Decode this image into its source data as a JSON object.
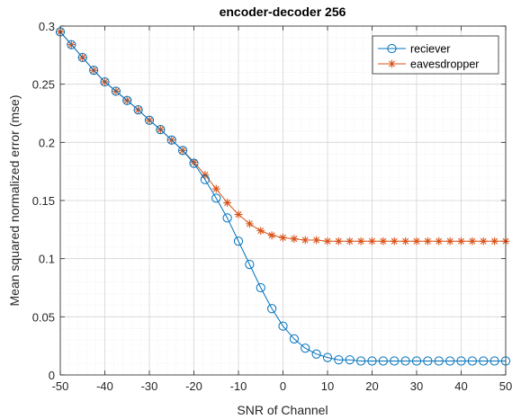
{
  "chart_data": {
    "type": "line",
    "title": "encoder-decoder 256",
    "xlabel": "SNR of Channel",
    "ylabel": "Mean squared normalized error (mse)",
    "xlim": [
      -50,
      50
    ],
    "ylim": [
      0,
      0.3
    ],
    "x_ticks": [
      -50,
      -40,
      -30,
      -20,
      -10,
      0,
      10,
      20,
      30,
      40,
      50
    ],
    "x_tick_labels": [
      "-50",
      "-40",
      "-30",
      "-20",
      "-10",
      "0",
      "10",
      "20",
      "30",
      "40",
      "50"
    ],
    "y_ticks": [
      0,
      0.05,
      0.1,
      0.15,
      0.2,
      0.25,
      0.3
    ],
    "y_tick_labels": [
      "0",
      "0.05",
      "0.1",
      "0.15",
      "0.2",
      "0.25",
      "0.3"
    ],
    "grid": true,
    "minor_grid": true,
    "legend_position": "top-right",
    "x": [
      -50,
      -47.5,
      -45,
      -42.5,
      -40,
      -37.5,
      -35,
      -32.5,
      -30,
      -27.5,
      -25,
      -22.5,
      -20,
      -17.5,
      -15,
      -12.5,
      -10,
      -7.5,
      -5,
      -2.5,
      0,
      2.5,
      5,
      7.5,
      10,
      12.5,
      15,
      17.5,
      20,
      22.5,
      25,
      27.5,
      30,
      32.5,
      35,
      37.5,
      40,
      42.5,
      45,
      47.5,
      50
    ],
    "series": [
      {
        "name": "reciever",
        "color": "#0072BD",
        "marker": "circle",
        "values": [
          0.295,
          0.284,
          0.273,
          0.262,
          0.252,
          0.244,
          0.236,
          0.228,
          0.219,
          0.211,
          0.202,
          0.193,
          0.182,
          0.168,
          0.152,
          0.135,
          0.115,
          0.095,
          0.075,
          0.057,
          0.042,
          0.031,
          0.023,
          0.018,
          0.015,
          0.013,
          0.013,
          0.012,
          0.012,
          0.012,
          0.012,
          0.012,
          0.012,
          0.012,
          0.012,
          0.012,
          0.012,
          0.012,
          0.012,
          0.012,
          0.012
        ]
      },
      {
        "name": "eavesdropper",
        "color": "#D95319",
        "marker": "asterisk",
        "values": [
          0.295,
          0.284,
          0.273,
          0.262,
          0.252,
          0.244,
          0.236,
          0.228,
          0.219,
          0.211,
          0.202,
          0.193,
          0.183,
          0.172,
          0.16,
          0.148,
          0.138,
          0.13,
          0.124,
          0.12,
          0.118,
          0.117,
          0.116,
          0.116,
          0.115,
          0.115,
          0.115,
          0.115,
          0.115,
          0.115,
          0.115,
          0.115,
          0.115,
          0.115,
          0.115,
          0.115,
          0.115,
          0.115,
          0.115,
          0.115,
          0.115
        ]
      }
    ]
  }
}
